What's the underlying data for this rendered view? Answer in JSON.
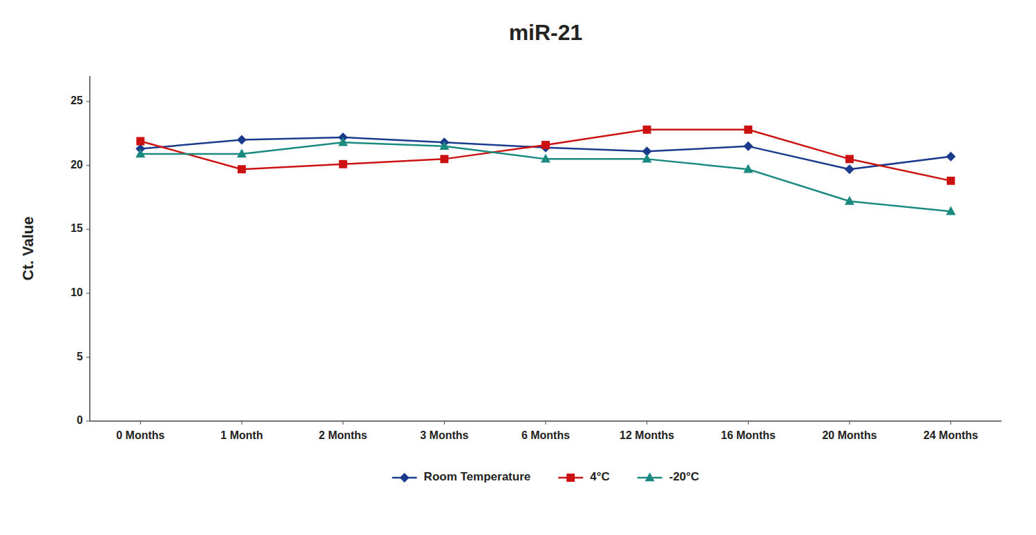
{
  "chart_data": {
    "type": "line",
    "title": "miR-21",
    "ylabel": "Ct. Value",
    "categories": [
      "0 Months",
      "1 Month",
      "2 Months",
      "3 Months",
      "6 Months",
      "12 Months",
      "16 Months",
      "20 Months",
      "24 Months"
    ],
    "series": [
      {
        "name": "Room Temperature",
        "color": "#1a3a8c",
        "marker": "diamond",
        "values": [
          21.3,
          22.0,
          22.2,
          21.8,
          21.4,
          21.1,
          21.5,
          19.7,
          20.7
        ]
      },
      {
        "name": "4°C",
        "color": "#cc1111",
        "marker": "square",
        "values": [
          21.9,
          19.7,
          20.1,
          20.5,
          21.6,
          22.8,
          22.8,
          20.5,
          18.8
        ]
      },
      {
        "name": "-20°C",
        "color": "#1a8a80",
        "marker": "triangle",
        "values": [
          20.9,
          20.9,
          21.8,
          21.5,
          20.5,
          20.5,
          19.7,
          17.2,
          16.4
        ]
      }
    ],
    "ylim": [
      0,
      27
    ],
    "yticks": [
      0,
      5,
      10,
      15,
      20,
      25
    ],
    "grid": false,
    "legend": "bottom"
  }
}
